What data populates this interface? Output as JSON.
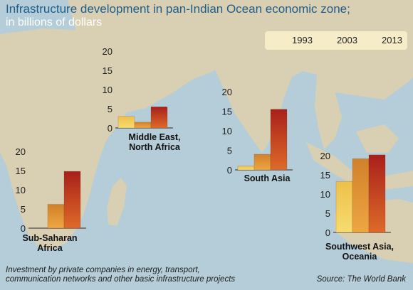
{
  "title": "Infrastructure development in pan-Indian Ocean economic zone;",
  "subtitle": "in billions of dollars",
  "legend": [
    {
      "label": "1993",
      "color": "#f2d462"
    },
    {
      "label": "2003",
      "color": "#e49a3c"
    },
    {
      "label": "2013",
      "color": "#b8241c"
    }
  ],
  "footnote": {
    "line1": "Investment by private companies in energy, transport,",
    "line2": "communication networks and other basic infrastructure projects"
  },
  "source": "Source: The World Bank",
  "colors": {
    "ocean": "#b4cdd8",
    "land": "#d9cfb3",
    "title": "#1d5e8c"
  },
  "chart_data": [
    {
      "type": "bar",
      "title": "Middle East, North Africa",
      "label_line1": "Middle East,",
      "label_line2": "North Africa",
      "categories": [
        "1993",
        "2003",
        "2013"
      ],
      "values": [
        3,
        1.5,
        5.5
      ],
      "ylim": [
        0,
        20
      ],
      "yticks": [
        "0",
        "5",
        "10",
        "15",
        "20"
      ]
    },
    {
      "type": "bar",
      "title": "South Asia",
      "label_line1": "South Asia",
      "label_line2": "",
      "categories": [
        "1993",
        "2003",
        "2013"
      ],
      "values": [
        1,
        4,
        15.5
      ],
      "ylim": [
        0,
        20
      ],
      "yticks": [
        "0",
        "5",
        "10",
        "15",
        "20"
      ]
    },
    {
      "type": "bar",
      "title": "Sub-Saharan Africa",
      "label_line1": "Sub-Saharan",
      "label_line2": "Africa",
      "categories": [
        "1993",
        "2003",
        "2013"
      ],
      "values": [
        0,
        6.2,
        14.8
      ],
      "ylim": [
        0,
        20
      ],
      "yticks": [
        "0",
        "5",
        "10",
        "15",
        "20"
      ]
    },
    {
      "type": "bar",
      "title": "Southwest Asia, Oceania",
      "label_line1": "Southwest Asia,",
      "label_line2": "Oceania",
      "categories": [
        "1993",
        "2003",
        "2013"
      ],
      "values": [
        13.3,
        19.2,
        20.2
      ],
      "ylim": [
        0,
        20
      ],
      "yticks": [
        "0",
        "5",
        "10",
        "15",
        "20"
      ]
    }
  ]
}
